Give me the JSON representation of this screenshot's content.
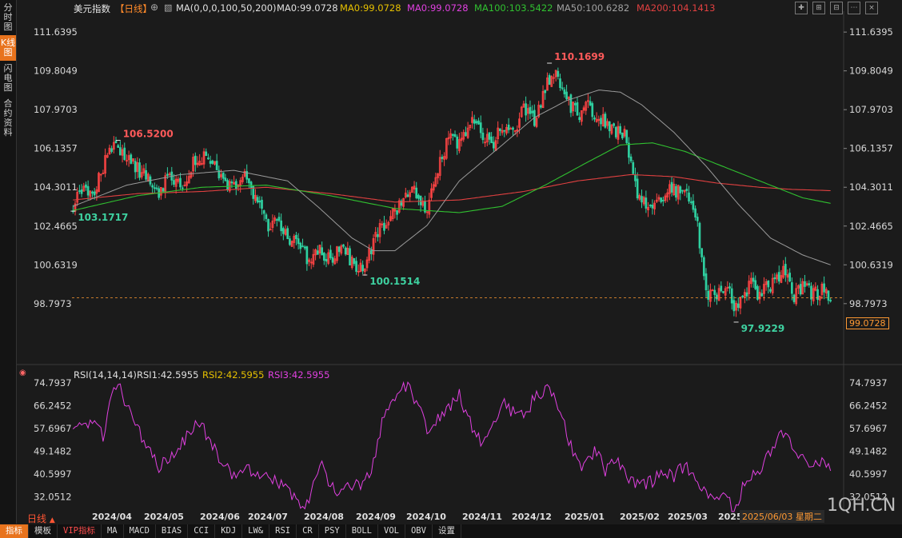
{
  "sidebar": {
    "tabs": [
      {
        "label": "分时图",
        "active": false
      },
      {
        "label": "K线图",
        "active": true
      },
      {
        "label": "闪电图",
        "active": false
      },
      {
        "label": "合约资料",
        "active": false
      }
    ]
  },
  "header": {
    "title": "美元指数",
    "period_tag": "【日线】",
    "ma_label": "MA(0,0,0,100,50,200)",
    "ma_items": [
      {
        "text": "MA0:99.0728",
        "color": "#e0e0e0"
      },
      {
        "text": "MA0:99.0728",
        "color": "#e6c000"
      },
      {
        "text": "MA0:99.0728",
        "color": "#e040e0"
      },
      {
        "text": "MA100:103.5422",
        "color": "#30c030"
      },
      {
        "text": "MA50:100.6282",
        "color": "#a0a0a0"
      },
      {
        "text": "MA200:104.1413",
        "color": "#e04040"
      }
    ]
  },
  "rsi_header": {
    "label": "RSI(14,14,14)",
    "items": [
      {
        "text": "RSI1:42.5955",
        "color": "#e0e0e0"
      },
      {
        "text": "RSI2:42.5955",
        "color": "#e6c000"
      },
      {
        "text": "RSI3:42.5955",
        "color": "#e040e0"
      }
    ]
  },
  "colors": {
    "up": "#ff4444",
    "down": "#2fd0a0",
    "ma100": "#30c030",
    "ma50": "#9a9a9a",
    "ma200": "#e04040",
    "rsi": "#e040e0",
    "accent": "#e8731d"
  },
  "chart_data": [
    {
      "type": "candlestick",
      "title": "美元指数",
      "ylim": [
        96.9,
        112.4
      ],
      "y_ticks": [
        "111.6395",
        "109.8049",
        "107.9703",
        "106.1357",
        "104.3011",
        "102.4665",
        "100.6319",
        "98.7973"
      ],
      "x_ticks": [
        "2024/04",
        "2024/05",
        "2024/06",
        "2024/07",
        "2024/08",
        "2024/09",
        "2024/10",
        "2024/11",
        "2024/12",
        "2025/01",
        "2025/02",
        "2025/03",
        "2025"
      ],
      "close_anchors": [
        [
          0,
          103.4
        ],
        [
          5,
          104.2
        ],
        [
          10,
          104.0
        ],
        [
          14,
          105.3
        ],
        [
          17,
          106.3
        ],
        [
          22,
          105.9
        ],
        [
          26,
          105.6
        ],
        [
          30,
          105.2
        ],
        [
          35,
          104.6
        ],
        [
          40,
          104.1
        ],
        [
          45,
          104.8
        ],
        [
          50,
          104.3
        ],
        [
          55,
          105.3
        ],
        [
          60,
          105.7
        ],
        [
          65,
          105.4
        ],
        [
          70,
          104.4
        ],
        [
          75,
          104.2
        ],
        [
          80,
          104.9
        ],
        [
          85,
          103.8
        ],
        [
          90,
          102.5
        ],
        [
          95,
          102.7
        ],
        [
          100,
          101.9
        ],
        [
          105,
          101.5
        ],
        [
          110,
          100.9
        ],
        [
          115,
          101.3
        ],
        [
          120,
          100.8
        ],
        [
          125,
          101.7
        ],
        [
          130,
          100.7
        ],
        [
          135,
          100.3
        ],
        [
          140,
          101.8
        ],
        [
          145,
          102.6
        ],
        [
          150,
          103.2
        ],
        [
          155,
          103.9
        ],
        [
          160,
          104.1
        ],
        [
          165,
          103.3
        ],
        [
          170,
          105.2
        ],
        [
          175,
          106.6
        ],
        [
          180,
          106.3
        ],
        [
          185,
          107.5
        ],
        [
          190,
          106.8
        ],
        [
          195,
          106.3
        ],
        [
          200,
          107.2
        ],
        [
          205,
          106.7
        ],
        [
          210,
          108.0
        ],
        [
          215,
          107.4
        ],
        [
          220,
          109.0
        ],
        [
          225,
          109.8
        ],
        [
          230,
          108.5
        ],
        [
          235,
          107.7
        ],
        [
          240,
          108.2
        ],
        [
          245,
          107.6
        ],
        [
          250,
          107.2
        ],
        [
          255,
          106.9
        ],
        [
          258,
          106.6
        ],
        [
          262,
          104.3
        ],
        [
          266,
          103.6
        ],
        [
          270,
          103.5
        ],
        [
          275,
          103.9
        ],
        [
          280,
          104.2
        ],
        [
          285,
          104.0
        ],
        [
          290,
          103.2
        ],
        [
          293,
          100.7
        ],
        [
          296,
          99.2
        ],
        [
          300,
          99.2
        ],
        [
          305,
          99.6
        ],
        [
          309,
          98.5
        ],
        [
          313,
          99.3
        ],
        [
          316,
          99.8
        ],
        [
          320,
          99.2
        ],
        [
          325,
          99.7
        ],
        [
          328,
          100.1
        ],
        [
          332,
          100.5
        ],
        [
          336,
          99.2
        ],
        [
          340,
          99.6
        ],
        [
          345,
          99.2
        ],
        [
          350,
          99.5
        ],
        [
          353,
          99.07
        ]
      ],
      "pivots": [
        {
          "label": "106.5200",
          "value": 106.52,
          "index": 21,
          "pos": "high"
        },
        {
          "label": "103.1717",
          "value": 103.1717,
          "index": 0,
          "pos": "low"
        },
        {
          "label": "100.1514",
          "value": 100.1514,
          "index": 136,
          "pos": "low"
        },
        {
          "label": "110.1699",
          "value": 110.1699,
          "index": 222,
          "pos": "high"
        },
        {
          "label": "97.9229",
          "value": 97.9229,
          "index": 309,
          "pos": "low"
        }
      ],
      "ma100_anchors": [
        [
          0,
          103.2
        ],
        [
          30,
          103.9
        ],
        [
          60,
          104.3
        ],
        [
          90,
          104.4
        ],
        [
          120,
          103.9
        ],
        [
          150,
          103.3
        ],
        [
          180,
          103.1
        ],
        [
          200,
          103.4
        ],
        [
          220,
          104.4
        ],
        [
          240,
          105.5
        ],
        [
          255,
          106.3
        ],
        [
          270,
          106.4
        ],
        [
          285,
          106.0
        ],
        [
          300,
          105.4
        ],
        [
          320,
          104.6
        ],
        [
          340,
          103.8
        ],
        [
          353,
          103.54
        ]
      ],
      "ma50_anchors": [
        [
          0,
          103.4
        ],
        [
          25,
          104.4
        ],
        [
          50,
          104.9
        ],
        [
          75,
          105.1
        ],
        [
          100,
          104.6
        ],
        [
          115,
          103.3
        ],
        [
          130,
          101.9
        ],
        [
          140,
          101.3
        ],
        [
          150,
          101.3
        ],
        [
          165,
          102.5
        ],
        [
          180,
          104.6
        ],
        [
          200,
          106.3
        ],
        [
          215,
          107.6
        ],
        [
          230,
          108.4
        ],
        [
          245,
          108.9
        ],
        [
          255,
          108.8
        ],
        [
          265,
          108.2
        ],
        [
          280,
          106.9
        ],
        [
          295,
          105.3
        ],
        [
          310,
          103.5
        ],
        [
          325,
          101.9
        ],
        [
          340,
          101.1
        ],
        [
          353,
          100.63
        ]
      ],
      "ma200_anchors": [
        [
          0,
          103.7
        ],
        [
          30,
          104.0
        ],
        [
          60,
          104.1
        ],
        [
          90,
          104.3
        ],
        [
          120,
          104.0
        ],
        [
          150,
          103.6
        ],
        [
          180,
          103.7
        ],
        [
          210,
          104.1
        ],
        [
          235,
          104.6
        ],
        [
          260,
          104.9
        ],
        [
          280,
          104.8
        ],
        [
          300,
          104.5
        ],
        [
          320,
          104.3
        ],
        [
          335,
          104.2
        ],
        [
          353,
          104.14
        ]
      ]
    },
    {
      "type": "line",
      "title": "RSI(14,14,14)",
      "ylim": [
        26.5,
        77.5
      ],
      "y_ticks": [
        "74.7937",
        "66.2452",
        "57.6967",
        "49.1482",
        "40.5997",
        "32.0512"
      ],
      "anchors": [
        [
          0,
          58
        ],
        [
          8,
          60
        ],
        [
          14,
          55
        ],
        [
          18,
          70
        ],
        [
          21,
          75
        ],
        [
          24,
          68
        ],
        [
          28,
          60
        ],
        [
          32,
          55
        ],
        [
          36,
          49
        ],
        [
          40,
          43
        ],
        [
          45,
          47
        ],
        [
          50,
          51
        ],
        [
          55,
          57
        ],
        [
          60,
          60
        ],
        [
          64,
          52
        ],
        [
          70,
          45
        ],
        [
          75,
          40
        ],
        [
          80,
          42
        ],
        [
          85,
          42
        ],
        [
          90,
          40
        ],
        [
          95,
          38
        ],
        [
          100,
          34
        ],
        [
          105,
          30
        ],
        [
          110,
          29
        ],
        [
          115,
          45
        ],
        [
          118,
          40
        ],
        [
          122,
          34
        ],
        [
          126,
          34
        ],
        [
          130,
          36
        ],
        [
          135,
          36
        ],
        [
          139,
          42
        ],
        [
          145,
          63
        ],
        [
          150,
          70
        ],
        [
          155,
          74
        ],
        [
          160,
          68
        ],
        [
          165,
          58
        ],
        [
          170,
          61
        ],
        [
          175,
          66
        ],
        [
          180,
          70
        ],
        [
          185,
          60
        ],
        [
          190,
          53
        ],
        [
          195,
          58
        ],
        [
          200,
          67
        ],
        [
          205,
          64
        ],
        [
          210,
          62
        ],
        [
          215,
          69
        ],
        [
          222,
          73
        ],
        [
          228,
          62
        ],
        [
          233,
          48
        ],
        [
          238,
          43
        ],
        [
          243,
          50
        ],
        [
          248,
          42
        ],
        [
          252,
          47
        ],
        [
          256,
          44
        ],
        [
          260,
          38
        ],
        [
          265,
          36
        ],
        [
          270,
          38
        ],
        [
          275,
          42
        ],
        [
          280,
          40
        ],
        [
          285,
          44
        ],
        [
          290,
          38
        ],
        [
          296,
          32
        ],
        [
          300,
          30
        ],
        [
          305,
          34
        ],
        [
          308,
          25
        ],
        [
          312,
          35
        ],
        [
          316,
          40
        ],
        [
          320,
          43
        ],
        [
          325,
          48
        ],
        [
          330,
          56
        ],
        [
          335,
          52
        ],
        [
          340,
          46
        ],
        [
          345,
          44
        ],
        [
          350,
          45
        ],
        [
          353,
          42.6
        ]
      ]
    }
  ],
  "price_flag": "99.0728",
  "date_flag": "2025/06/03 星期二",
  "period_label": "日线",
  "watermark": "1QH.CN",
  "bottom_tabs": [
    "指标",
    "模板",
    "VIP指标",
    "MA",
    "MACD",
    "BIAS",
    "CCI",
    "KDJ",
    "LW&",
    "RSI",
    "CR",
    "PSY",
    "BOLL",
    "VOL",
    "OBV",
    "设置"
  ]
}
